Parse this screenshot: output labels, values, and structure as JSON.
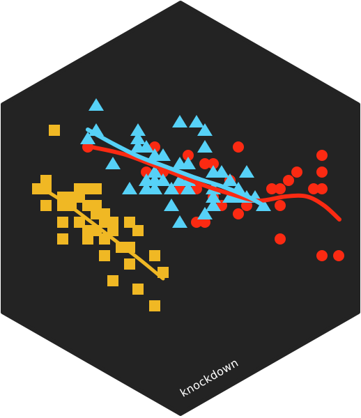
{
  "sticker": {
    "label": "knockdown",
    "background": "#232323",
    "colors": {
      "gold": "#f0b824",
      "red": "#fb2a12",
      "cyan": "#56d1f7"
    }
  },
  "chart_data": {
    "type": "scatter",
    "title": "",
    "xlabel": "",
    "ylabel": "",
    "grid": false,
    "legend": "none",
    "series": [
      {
        "marker": "square",
        "color": "#f0b824",
        "points": [
          [
            78,
            187
          ],
          [
            66,
            259
          ],
          [
            54,
            271
          ],
          [
            66,
            271
          ],
          [
            90,
            283
          ],
          [
            114,
            271
          ],
          [
            126,
            271
          ],
          [
            138,
            271
          ],
          [
            102,
            283
          ],
          [
            114,
            283
          ],
          [
            66,
            295
          ],
          [
            90,
            295
          ],
          [
            102,
            295
          ],
          [
            126,
            295
          ],
          [
            138,
            295
          ],
          [
            150,
            307
          ],
          [
            138,
            307
          ],
          [
            114,
            319
          ],
          [
            90,
            319
          ],
          [
            150,
            319
          ],
          [
            162,
            319
          ],
          [
            186,
            319
          ],
          [
            126,
            331
          ],
          [
            138,
            331
          ],
          [
            162,
            331
          ],
          [
            198,
            331
          ],
          [
            90,
            343
          ],
          [
            126,
            343
          ],
          [
            150,
            343
          ],
          [
            174,
            355
          ],
          [
            186,
            355
          ],
          [
            150,
            367
          ],
          [
            222,
            367
          ],
          [
            186,
            379
          ],
          [
            234,
            391
          ],
          [
            162,
            403
          ],
          [
            198,
            415
          ],
          [
            222,
            439
          ]
        ],
        "trend": [
          [
            60,
            270
          ],
          [
            95,
            292
          ],
          [
            130,
            318
          ],
          [
            165,
            345
          ],
          [
            200,
            372
          ],
          [
            234,
            400
          ]
        ]
      },
      {
        "marker": "circle",
        "color": "#fb2a12",
        "points": [
          [
            126,
            211
          ],
          [
            222,
            211
          ],
          [
            342,
            211
          ],
          [
            270,
            223
          ],
          [
            462,
            223
          ],
          [
            210,
            247
          ],
          [
            234,
            247
          ],
          [
            294,
            235
          ],
          [
            306,
            235
          ],
          [
            426,
            247
          ],
          [
            462,
            247
          ],
          [
            330,
            259
          ],
          [
            414,
            259
          ],
          [
            258,
            271
          ],
          [
            282,
            271
          ],
          [
            390,
            271
          ],
          [
            402,
            271
          ],
          [
            450,
            271
          ],
          [
            462,
            271
          ],
          [
            306,
            283
          ],
          [
            318,
            295
          ],
          [
            354,
            295
          ],
          [
            402,
            295
          ],
          [
            342,
            307
          ],
          [
            282,
            319
          ],
          [
            294,
            319
          ],
          [
            402,
            343
          ],
          [
            462,
            367
          ],
          [
            486,
            367
          ]
        ],
        "trend": [
          [
            126,
            210
          ],
          [
            180,
            222
          ],
          [
            240,
            245
          ],
          [
            290,
            265
          ],
          [
            330,
            278
          ],
          [
            370,
            288
          ],
          [
            410,
            282
          ],
          [
            440,
            282
          ],
          [
            465,
            295
          ],
          [
            487,
            315
          ]
        ]
      },
      {
        "marker": "triangle",
        "color": "#56d1f7",
        "points": [
          [
            138,
            151
          ],
          [
            258,
            175
          ],
          [
            282,
            175
          ],
          [
            138,
            187
          ],
          [
            198,
            187
          ],
          [
            294,
            187
          ],
          [
            126,
            199
          ],
          [
            198,
            199
          ],
          [
            210,
            211
          ],
          [
            294,
            211
          ],
          [
            198,
            211
          ],
          [
            222,
            223
          ],
          [
            234,
            223
          ],
          [
            162,
            235
          ],
          [
            270,
            235
          ],
          [
            258,
            235
          ],
          [
            222,
            247
          ],
          [
            306,
            247
          ],
          [
            318,
            247
          ],
          [
            354,
            247
          ],
          [
            210,
            259
          ],
          [
            222,
            259
          ],
          [
            270,
            259
          ],
          [
            234,
            259
          ],
          [
            258,
            259
          ],
          [
            330,
            259
          ],
          [
            186,
            271
          ],
          [
            210,
            271
          ],
          [
            222,
            271
          ],
          [
            246,
            271
          ],
          [
            270,
            271
          ],
          [
            306,
            271
          ],
          [
            342,
            271
          ],
          [
            306,
            283
          ],
          [
            330,
            283
          ],
          [
            342,
            283
          ],
          [
            354,
            283
          ],
          [
            366,
            283
          ],
          [
            246,
            295
          ],
          [
            306,
            295
          ],
          [
            378,
            295
          ],
          [
            294,
            307
          ],
          [
            258,
            319
          ]
        ],
        "trend": [
          [
            126,
            186
          ],
          [
            160,
            205
          ],
          [
            200,
            225
          ],
          [
            240,
            240
          ],
          [
            280,
            255
          ],
          [
            320,
            268
          ],
          [
            355,
            282
          ],
          [
            380,
            296
          ]
        ]
      }
    ]
  }
}
